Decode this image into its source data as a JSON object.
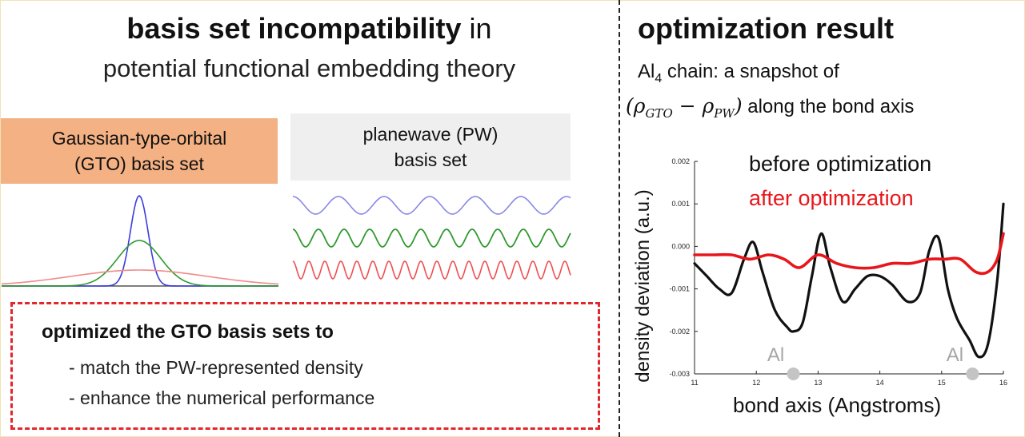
{
  "left_panel": {
    "title_bold": "basis set incompatibility",
    "title_rest": " in",
    "subtitle": "potential functional embedding theory",
    "gto_box": {
      "line1": "Gaussian-type-orbital",
      "line2": "(GTO) basis set",
      "color": "#f4b183"
    },
    "pw_box": {
      "line1": "planewave (PW)",
      "line2": "basis set",
      "color": "#efefef"
    },
    "gaussian_curve_colors": [
      "#3b3bdc",
      "#2e9a2e",
      "#f08a8a"
    ],
    "wave_colors": [
      "#8888e8",
      "#2f9a2f",
      "#ef5050"
    ],
    "summary_box": {
      "heading": "optimized the GTO basis sets to",
      "items": [
        "- match the PW-represented density",
        "- enhance the numerical performance"
      ],
      "border_color": "#e3262b"
    }
  },
  "right_panel": {
    "title": "optimization result",
    "caption_pre": "Al",
    "caption_sub": "4",
    "caption_post": " chain: a snapshot of",
    "math_open": "(ρ",
    "math_sub1": "GTO",
    "math_mid": " − ρ",
    "math_sub2": "PW",
    "math_close": ")",
    "caption_line2_rest": " along the bond axis"
  },
  "chart_data": {
    "type": "line",
    "xlabel": "bond axis (Angstroms)",
    "ylabel": "density deviation (a.u.)",
    "xlim": [
      11,
      16
    ],
    "ylim": [
      -0.003,
      0.002
    ],
    "x_ticks": [
      "11",
      "12",
      "13",
      "14",
      "15",
      "16"
    ],
    "y_ticks": [
      "0.002",
      "0.001",
      "0.000",
      "-0.001",
      "-0.002",
      "-0.003"
    ],
    "series": [
      {
        "name": "before optimization",
        "color": "#111111",
        "x": [
          11.0,
          11.2,
          11.4,
          11.6,
          11.8,
          11.95,
          12.1,
          12.3,
          12.5,
          12.6,
          12.75,
          12.9,
          13.05,
          13.2,
          13.4,
          13.6,
          13.8,
          14.0,
          14.2,
          14.45,
          14.65,
          14.8,
          14.95,
          15.1,
          15.25,
          15.45,
          15.6,
          15.75,
          15.9,
          16.0
        ],
        "y": [
          -0.0004,
          -0.0007,
          -0.001,
          -0.0011,
          -0.0003,
          0.0001,
          -0.0006,
          -0.0015,
          -0.0019,
          -0.002,
          -0.0018,
          -0.0007,
          0.0003,
          -0.0005,
          -0.0013,
          -0.001,
          -0.0007,
          -0.0007,
          -0.0009,
          -0.0013,
          -0.0011,
          -0.0001,
          0.0002,
          -0.001,
          -0.0017,
          -0.0022,
          -0.0026,
          -0.0023,
          -0.0008,
          0.001
        ]
      },
      {
        "name": "after optimization",
        "color": "#e8161b",
        "x": [
          11.0,
          11.3,
          11.6,
          11.9,
          12.2,
          12.45,
          12.7,
          13.0,
          13.3,
          13.6,
          13.9,
          14.2,
          14.5,
          14.8,
          15.05,
          15.3,
          15.55,
          15.75,
          15.9,
          16.0
        ],
        "y": [
          -0.0002,
          -0.0002,
          -0.0002,
          -0.0003,
          -0.0002,
          -0.0003,
          -0.0005,
          -0.0002,
          -0.0004,
          -0.0005,
          -0.0005,
          -0.0004,
          -0.0004,
          -0.0003,
          -0.0003,
          -0.0003,
          -0.0006,
          -0.0006,
          -0.0003,
          0.0003
        ]
      }
    ],
    "atoms": [
      {
        "label": "Al",
        "x": 12.6
      },
      {
        "label": "Al",
        "x": 15.5
      }
    ]
  }
}
